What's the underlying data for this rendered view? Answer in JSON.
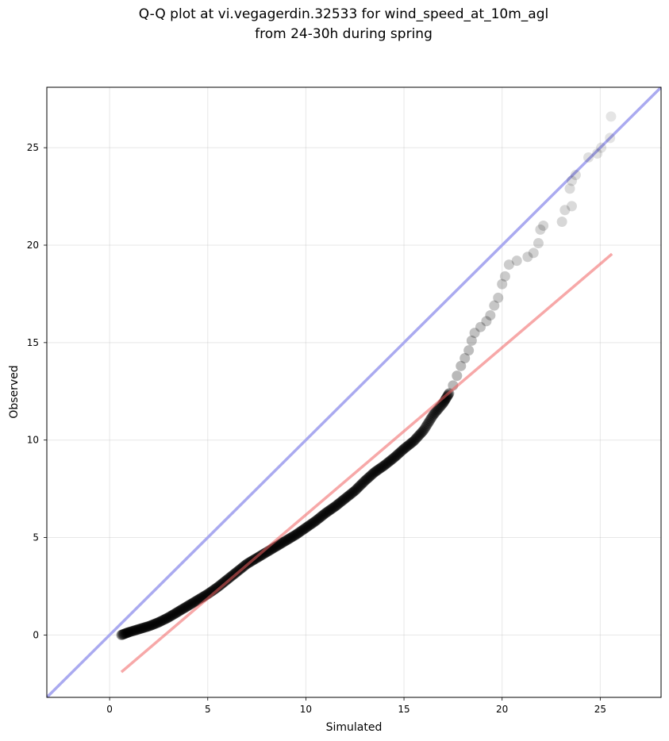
{
  "chart_data": {
    "type": "scatter",
    "title_lines": [
      "Q-Q plot at vi.vegagerdin.32533 for wind_speed_at_10m_agl",
      "from 24-30h during spring"
    ],
    "xlabel": "Simulated",
    "ylabel": "Observed",
    "xlim": [
      -3.2,
      28.1
    ],
    "ylim": [
      -3.2,
      28.1
    ],
    "xticks": [
      0,
      5,
      10,
      15,
      20,
      25
    ],
    "yticks": [
      0,
      5,
      10,
      15,
      20,
      25
    ],
    "grid": true,
    "colors": {
      "points": "#000000",
      "identity_line": "#aaaaf0",
      "fit_line": "#f4a6a6"
    },
    "identity_line": {
      "x": [
        -3.2,
        28.1
      ],
      "y": [
        -3.2,
        28.1
      ]
    },
    "fit_line": {
      "x": [
        0.6,
        25.6
      ],
      "y": [
        -1.9,
        19.55
      ]
    },
    "quantile_curve": {
      "x": [
        0.6,
        1.0,
        1.5,
        2.0,
        2.5,
        3.0,
        3.5,
        4.0,
        4.5,
        5.0,
        5.5,
        6.0,
        6.5,
        7.0,
        7.5,
        8.0,
        8.5,
        9.0,
        9.5,
        10.0,
        10.5,
        11.0,
        11.5,
        12.0,
        12.5,
        13.0,
        13.5,
        14.0,
        14.5,
        15.0,
        15.5,
        16.0,
        16.5,
        17.0,
        17.3
      ],
      "y": [
        0.0,
        0.15,
        0.3,
        0.45,
        0.65,
        0.9,
        1.2,
        1.5,
        1.8,
        2.1,
        2.45,
        2.85,
        3.25,
        3.65,
        3.95,
        4.25,
        4.55,
        4.85,
        5.15,
        5.5,
        5.85,
        6.25,
        6.6,
        7.0,
        7.4,
        7.9,
        8.35,
        8.7,
        9.1,
        9.55,
        9.95,
        10.5,
        11.3,
        11.9,
        12.4
      ]
    },
    "tail_points": [
      {
        "x": 17.5,
        "y": 12.8
      },
      {
        "x": 17.7,
        "y": 13.3
      },
      {
        "x": 17.9,
        "y": 13.8
      },
      {
        "x": 18.1,
        "y": 14.2
      },
      {
        "x": 18.3,
        "y": 14.6
      },
      {
        "x": 18.45,
        "y": 15.1
      },
      {
        "x": 18.6,
        "y": 15.5
      },
      {
        "x": 18.9,
        "y": 15.8
      },
      {
        "x": 19.2,
        "y": 16.1
      },
      {
        "x": 19.4,
        "y": 16.4
      },
      {
        "x": 19.6,
        "y": 16.9
      },
      {
        "x": 19.8,
        "y": 17.3
      },
      {
        "x": 20.0,
        "y": 18.0
      },
      {
        "x": 20.15,
        "y": 18.4
      },
      {
        "x": 20.35,
        "y": 19.0
      },
      {
        "x": 20.75,
        "y": 19.2
      },
      {
        "x": 21.3,
        "y": 19.4
      },
      {
        "x": 21.6,
        "y": 19.6
      },
      {
        "x": 21.85,
        "y": 20.1
      },
      {
        "x": 21.95,
        "y": 20.8
      },
      {
        "x": 22.1,
        "y": 21.0
      },
      {
        "x": 23.05,
        "y": 21.2
      },
      {
        "x": 23.2,
        "y": 21.8
      },
      {
        "x": 23.55,
        "y": 22.0
      },
      {
        "x": 23.45,
        "y": 22.9
      },
      {
        "x": 23.55,
        "y": 23.3
      },
      {
        "x": 23.75,
        "y": 23.6
      },
      {
        "x": 24.4,
        "y": 24.5
      },
      {
        "x": 24.85,
        "y": 24.7
      },
      {
        "x": 25.05,
        "y": 25.0
      },
      {
        "x": 25.5,
        "y": 25.5
      },
      {
        "x": 25.55,
        "y": 26.6
      }
    ]
  }
}
